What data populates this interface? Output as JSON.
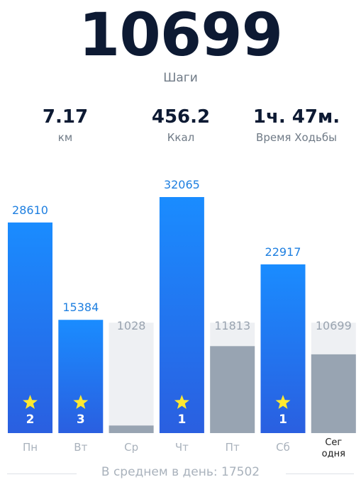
{
  "summary": {
    "steps": "10699",
    "steps_label": "Шаги",
    "stats": [
      {
        "value": "7.17",
        "label": "км"
      },
      {
        "value": "456.2",
        "label": "Ккал"
      },
      {
        "value": "1ч. 47м.",
        "label": "Время Ходьбы"
      }
    ]
  },
  "chart_data": {
    "type": "bar",
    "goal": 15000,
    "ylim": [
      0,
      32065
    ],
    "categories": [
      "Пн",
      "Вт",
      "Ср",
      "Чт",
      "Пт",
      "Сб",
      "Сег одня"
    ],
    "values": [
      28610,
      15384,
      1028,
      32065,
      11813,
      22917,
      10699
    ],
    "value_labels": [
      "28610",
      "15384",
      "1028",
      "32065",
      "11813",
      "22917",
      "10699"
    ],
    "goal_met": [
      true,
      true,
      false,
      true,
      false,
      true,
      false
    ],
    "stars": [
      "2",
      "3",
      "",
      "1",
      "",
      "1",
      ""
    ],
    "colors": {
      "met_top": "#1a8cff",
      "met_bottom": "#2a5fe0",
      "unmet": "#98a4b2",
      "goal_bg": "#eef0f3",
      "label_met": "#1e7fe0",
      "label_unmet": "#9aa4b0",
      "star": "#ffe930"
    }
  },
  "footer": {
    "average": "В среднем в день: 17502"
  }
}
